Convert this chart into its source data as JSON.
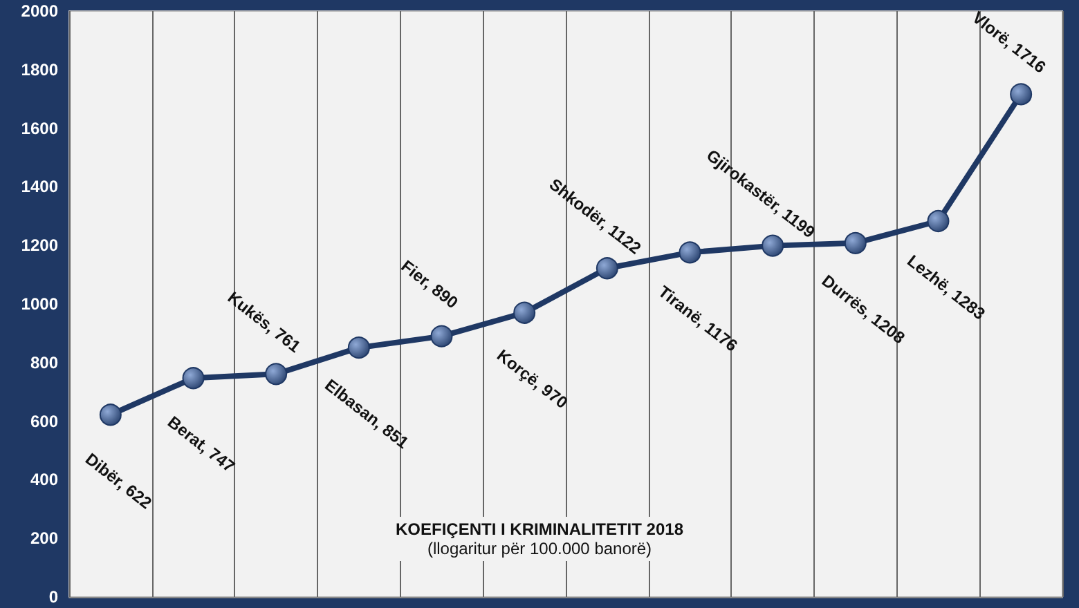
{
  "chart_data": {
    "type": "line",
    "title": "KOEFIÇENTI I KRIMINALITETIT 2018",
    "subtitle": "(llogaritur për 100.000 banorë)",
    "categories": [
      null,
      null,
      null,
      null,
      null,
      null,
      null,
      null,
      null,
      null,
      null,
      null
    ],
    "series": [
      {
        "color": "#1f3864",
        "values": [
          622,
          747,
          761,
          851,
          890,
          970,
          1122,
          1176,
          1199,
          1208,
          1283,
          1716
        ],
        "value_labels": [
          "Dibër, 622",
          "Berat, 747",
          "Kukës, 761",
          "Elbasan, 851",
          "Fier, 890",
          "Korçë, 970",
          "Shkodër, 1122",
          "Tiranë, 1176",
          "Gjirokastër, 1199",
          "Durrës, 1208",
          "Lezhë, 1283",
          "Vlorë, 1716"
        ]
      }
    ],
    "ylim": [
      0,
      2000
    ],
    "yticks": [
      0,
      200,
      400,
      600,
      800,
      1000,
      1200,
      1400,
      1600,
      1800,
      2000
    ],
    "grid": "x",
    "marker": "circle",
    "line_style": "solid",
    "tick_labels": "y"
  }
}
